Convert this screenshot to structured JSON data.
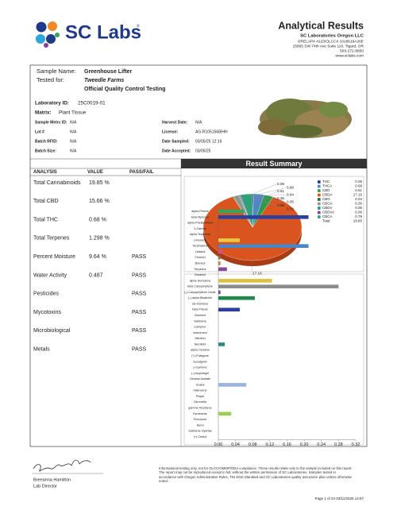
{
  "header": {
    "logo_text": "SC Labs",
    "logo_mark": "®",
    "title": "Analytical Results",
    "lab_name": "SC Laboratories Oregon LLC",
    "license": "ORELAP# 4123/OLCC# 1018619A26E",
    "address": "15865 SW 74th Ave Suite 110, Tigard, OR",
    "phone": "503-272-8830",
    "website": "www.sclabs.com"
  },
  "sample": {
    "fields": [
      {
        "label": "Sample Name:",
        "value": "Greenhouse Lifter"
      },
      {
        "label": "Tested for:",
        "value": "Tweedle Farms"
      }
    ],
    "testing_type": "Official Quality Control Testing",
    "main": [
      {
        "label": "Laboratory ID:",
        "value": "25C0019-01"
      },
      {
        "label": "Matrix:",
        "value": "Plant Tissue"
      }
    ],
    "details_left": [
      {
        "label": "Sample Metrc ID:",
        "value": "N/A"
      },
      {
        "label": "Lot #",
        "value": "N/A"
      },
      {
        "label": "Batch RFID:",
        "value": "N/A"
      },
      {
        "label": "Batch Size:",
        "value": "N/A"
      }
    ],
    "details_right": [
      {
        "label": "Harvest Date:",
        "value": "N/A"
      },
      {
        "label": "License:",
        "value": "AG-R1051568IHH"
      },
      {
        "label": "Date Sampled:",
        "value": "03/05/25  12:16"
      },
      {
        "label": "Date Accepted:",
        "value": "03/05/25"
      }
    ]
  },
  "summary": {
    "title": "Result Summary",
    "columns": [
      "ANALYSIS",
      "VALUE",
      "PASS/FAIL"
    ],
    "rows": [
      {
        "analysis": "Total Cannabinoids",
        "value": "19.85 %"
      },
      {
        "analysis": "Total CBD",
        "value": "15.66 %"
      },
      {
        "analysis": "Total THC",
        "value": "0.68 %"
      },
      {
        "analysis": "Total Terpenes",
        "value": "1.298 %"
      },
      {
        "analysis": "Percent Moisture",
        "value": "9.64 %",
        "result": "PASS"
      },
      {
        "analysis": "Water Activity",
        "value": "0.487",
        "result": "PASS"
      },
      {
        "analysis": "Pesticides",
        "result": "PASS"
      },
      {
        "analysis": "Mycotoxins",
        "result": "PASS"
      },
      {
        "analysis": "Microbiological",
        "result": "PASS"
      },
      {
        "analysis": "Metals",
        "result": "PASS"
      }
    ]
  },
  "chart_data": [
    {
      "type": "pie",
      "categories": [
        "THC",
        "THCA",
        "CBD",
        "CBDA",
        "CBG",
        "CBGA",
        "CBDV",
        "CBDVA",
        "CBCA"
      ],
      "values": [
        0.08,
        0.68,
        0.61,
        17.16,
        0.04,
        0.36,
        0.05,
        0.06,
        0.79
      ],
      "colors": [
        "#24338c",
        "#4f86c9",
        "#2d9a4c",
        "#d9541e",
        "#1f6b3a",
        "#8a9a8a",
        "#2a8f9a",
        "#7a3f96",
        "#2fa07a"
      ],
      "total_label": "Total",
      "total": 19.85
    },
    {
      "type": "bar",
      "orientation": "horizontal",
      "categories": [
        "alpha Pinene",
        "beta Myrcene",
        "alpha Phellandrene",
        "3-Carene",
        "alpha Terpinene",
        "Limonene",
        "Terpinolene",
        "Linalool",
        "Fenchol",
        "Borneol",
        "Terpineol",
        "Geraniol",
        "alpha Humulene",
        "beta Caryophyllene",
        "(-)-Caryophyllene Oxide",
        "(-)-alpha Bisabolol",
        "cis-Ocimene",
        "beta Pinene",
        "Ocimene",
        "Sabinene",
        "Camphor",
        "Isoborneol",
        "Menthol",
        "Nerolidol",
        "alpha Cedrene",
        "(+)-Pulegone",
        "Eucalyptol",
        "p-Cymene",
        "(-)-Isopulegol",
        "Geranyl Acetate",
        "Guaiol",
        "Valencene",
        "Phytol",
        "Citronellol",
        "gamma Terpinene",
        "Farnesene",
        "Fenchone",
        "Nerol",
        "Sabinene Hydrate",
        "(+)-Cedrol"
      ],
      "values": [
        0.06,
        0.21,
        0,
        0,
        0,
        0.05,
        0.21,
        0.01,
        0.005,
        0.005,
        0.02,
        0,
        0.125,
        0.28,
        0.005,
        0.085,
        0,
        0.05,
        0,
        0,
        0,
        0,
        0,
        0.015,
        0,
        0,
        0,
        0,
        0,
        0,
        0.065,
        0,
        0,
        0,
        0,
        0.03,
        0,
        0,
        0,
        0
      ],
      "colors": [
        "#3aa35b",
        "#2b3f9e",
        "#5b7fc4",
        "#5b7fc4",
        "#5b7fc4",
        "#e8c840",
        "#4a86c8",
        "#d94f8a",
        "#9a6a3a",
        "#d08030",
        "#8a4a9a",
        "#5b7fc4",
        "#e0c040",
        "#8c8c8c",
        "#7a4aa0",
        "#1e8a4a",
        "#5b7fc4",
        "#2b3f9e",
        "#5b7fc4",
        "#5b7fc4",
        "#5b7fc4",
        "#5b7fc4",
        "#5b7fc4",
        "#2a8a8a",
        "#5b7fc4",
        "#5b7fc4",
        "#5b7fc4",
        "#5b7fc4",
        "#5b7fc4",
        "#5b7fc4",
        "#9ab4dc",
        "#5b7fc4",
        "#5b7fc4",
        "#5b7fc4",
        "#5b7fc4",
        "#9ad050",
        "#5b7fc4",
        "#5b7fc4",
        "#5b7fc4",
        "#5b7fc4"
      ],
      "xlim": [
        0,
        0.32
      ],
      "xticks": [
        {
          "value": 0,
          "label": "0.00"
        },
        0.04,
        0.08,
        0.12,
        0.16,
        {
          "value": 0.2,
          "label": "0.20"
        },
        0.24,
        0.28,
        0.32
      ]
    }
  ],
  "footer": {
    "signer": "Breeanna Hamilton",
    "role": "Lab Director",
    "disclaimer": "Informational testing only, not for OLCC/OMMP/ODA compliance. These results relate only to the sample included on this report. The report may not be reproduced except in full, without the written permission of SC Laboratories. Samples tested in accordance with Oregon Administrative Rules, TNI 2016 Standard and SC Laboratories quality assurance plan unless otherwise noted.",
    "page_info": "Page 1 of 23  03/11/2025 14:57"
  }
}
